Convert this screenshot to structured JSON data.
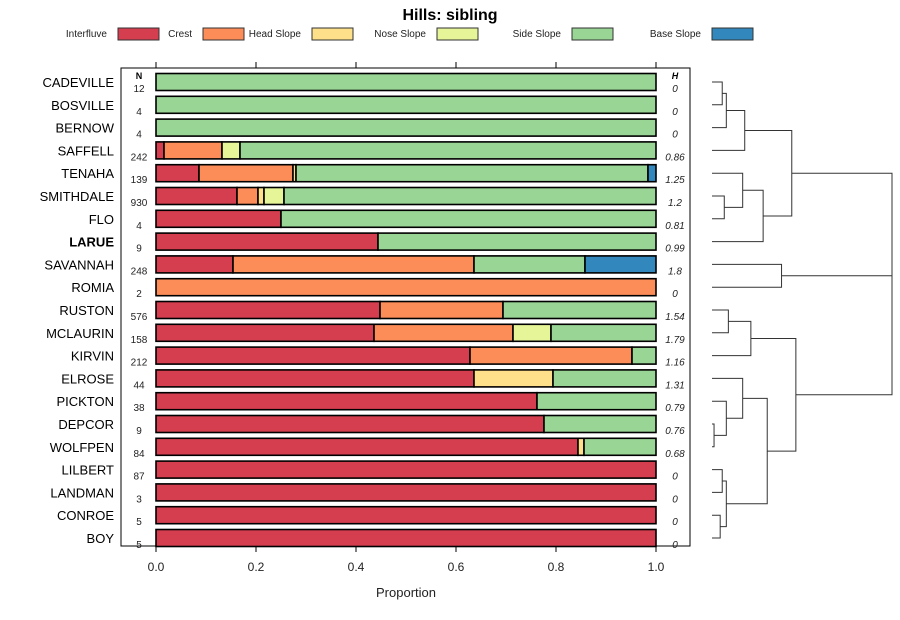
{
  "chart_data": {
    "type": "bar",
    "orientation": "horizontal",
    "stacked": true,
    "title": "Hills: sibling",
    "xlabel": "Proportion",
    "ylabel": "",
    "xlim": [
      0,
      1
    ],
    "xticks": [
      "0.0",
      "0.2",
      "0.4",
      "0.6",
      "0.8",
      "1.0"
    ],
    "xtick_values": [
      0,
      0.2,
      0.4,
      0.6,
      0.8,
      1.0
    ],
    "grid": false,
    "legend_position": "top",
    "n_header": "N",
    "h_header": "H",
    "legend": [
      {
        "name": "Interfluve",
        "color": "#D53E4F"
      },
      {
        "name": "Crest",
        "color": "#FC8D59"
      },
      {
        "name": "Head Slope",
        "color": "#FEE08B"
      },
      {
        "name": "Nose Slope",
        "color": "#E6F598"
      },
      {
        "name": "Side Slope",
        "color": "#99D594"
      },
      {
        "name": "Base Slope",
        "color": "#3288BD"
      }
    ],
    "categories": [
      "CADEVILLE",
      "BOSVILLE",
      "BERNOW",
      "SAFFELL",
      "TENAHA",
      "SMITHDALE",
      "FLO",
      "LARUE",
      "SAVANNAH",
      "ROMIA",
      "RUSTON",
      "MCLAURIN",
      "KIRVIN",
      "ELROSE",
      "PICKTON",
      "DEPCOR",
      "WOLFPEN",
      "LILBERT",
      "LANDMAN",
      "CONROE",
      "BOY"
    ],
    "highlighted": "LARUE",
    "n": [
      12,
      4,
      4,
      242,
      139,
      930,
      4,
      9,
      248,
      2,
      576,
      158,
      212,
      44,
      38,
      9,
      84,
      87,
      3,
      5,
      5
    ],
    "h": [
      "0",
      "0",
      "0",
      "0.86",
      "1.25",
      "1.2",
      "0.81",
      "0.99",
      "1.8",
      "0",
      "1.54",
      "1.79",
      "1.16",
      "1.31",
      "0.79",
      "0.76",
      "0.68",
      "0",
      "0",
      "0",
      "0"
    ],
    "series": [
      {
        "name": "Interfluve",
        "values": [
          0,
          0,
          0,
          0.016,
          0.086,
          0.162,
          0.25,
          0.444,
          0.154,
          0,
          0.448,
          0.436,
          0.628,
          0.636,
          0.762,
          0.776,
          0.844,
          1,
          1,
          1,
          1
        ]
      },
      {
        "name": "Crest",
        "values": [
          0,
          0,
          0,
          0.116,
          0.188,
          0.042,
          0,
          0,
          0.482,
          1,
          0.246,
          0.278,
          0.324,
          0,
          0,
          0,
          0,
          0,
          0,
          0,
          0
        ]
      },
      {
        "name": "Head Slope",
        "values": [
          0,
          0,
          0,
          0,
          0.006,
          0.012,
          0,
          0,
          0,
          0,
          0,
          0,
          0,
          0.158,
          0,
          0,
          0.012,
          0,
          0,
          0,
          0
        ]
      },
      {
        "name": "Nose Slope",
        "values": [
          0,
          0,
          0,
          0.036,
          0,
          0.04,
          0,
          0,
          0,
          0,
          0,
          0.076,
          0,
          0,
          0,
          0,
          0,
          0,
          0,
          0,
          0
        ]
      },
      {
        "name": "Side Slope",
        "values": [
          1,
          1,
          1,
          0.832,
          0.704,
          0.744,
          0.75,
          0.556,
          0.222,
          0,
          0.306,
          0.21,
          0.048,
          0.206,
          0.238,
          0.224,
          0.144,
          0,
          0,
          0,
          0
        ]
      },
      {
        "name": "Base Slope",
        "values": [
          0,
          0,
          0,
          0,
          0.016,
          0,
          0,
          0,
          0.142,
          0,
          0,
          0,
          0,
          0,
          0,
          0,
          0,
          0,
          0,
          0,
          0
        ]
      }
    ],
    "dendrogram": {
      "leaf_order": [
        "CADEVILLE",
        "BOSVILLE",
        "BERNOW",
        "SAFFELL",
        "TENAHA",
        "SMITHDALE",
        "FLO",
        "LARUE",
        "SAVANNAH",
        "ROMIA",
        "RUSTON",
        "MCLAURIN",
        "KIRVIN",
        "ELROSE",
        "PICKTON",
        "DEPCOR",
        "WOLFPEN",
        "LILBERT",
        "LANDMAN",
        "CONROE",
        "BOY"
      ],
      "merges": [
        {
          "a": 0,
          "b": 1,
          "height": 0.05
        },
        {
          "a": 2,
          "b": "m0",
          "height": 0.07
        },
        {
          "a": 3,
          "b": "m1",
          "height": 0.16
        },
        {
          "a": 5,
          "b": 6,
          "height": 0.06
        },
        {
          "a": 4,
          "b": "m3",
          "height": 0.15
        },
        {
          "a": 7,
          "b": "m4",
          "height": 0.25
        },
        {
          "a": "m2",
          "b": "m5",
          "height": 0.39
        },
        {
          "a": 8,
          "b": 9,
          "height": 0.34
        },
        {
          "a": 10,
          "b": 11,
          "height": 0.08
        },
        {
          "a": 12,
          "b": "m8",
          "height": 0.19
        },
        {
          "a": 15,
          "b": 16,
          "height": 0.01
        },
        {
          "a": 14,
          "b": "m10",
          "height": 0.07
        },
        {
          "a": 13,
          "b": "m11",
          "height": 0.15
        },
        {
          "a": 17,
          "b": 18,
          "height": 0.05
        },
        {
          "a": 19,
          "b": 20,
          "height": 0.04
        },
        {
          "a": "m13",
          "b": "m14",
          "height": 0.07
        },
        {
          "a": "m12",
          "b": "m15",
          "height": 0.27
        },
        {
          "a": "m9",
          "b": "m16",
          "height": 0.41
        },
        {
          "a": "m6",
          "b": "m7",
          "height": 0.88
        },
        {
          "a": "m18",
          "b": "m17",
          "height": 0.88
        }
      ]
    }
  }
}
